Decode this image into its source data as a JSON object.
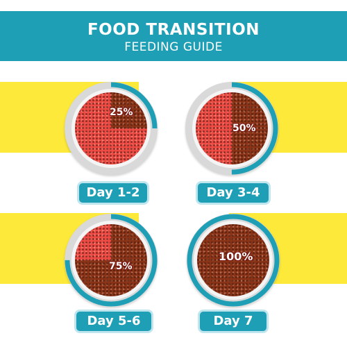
{
  "header": {
    "title": "FOOD TRANSITION",
    "subtitle": "FEEDING GUIDE"
  },
  "colors": {
    "accent": "#1e9fb5",
    "band": "#fde93a",
    "new_food": "#8a3317",
    "old_food": "#ef4a43"
  },
  "stages": [
    {
      "day": "Day 1-2",
      "percent_label": "25%",
      "new_food_fraction": 0.25
    },
    {
      "day": "Day 3-4",
      "percent_label": "50%",
      "new_food_fraction": 0.5
    },
    {
      "day": "Day 5-6",
      "percent_label": "75%",
      "new_food_fraction": 0.75
    },
    {
      "day": "Day 7",
      "percent_label": "100%",
      "new_food_fraction": 1.0
    }
  ]
}
